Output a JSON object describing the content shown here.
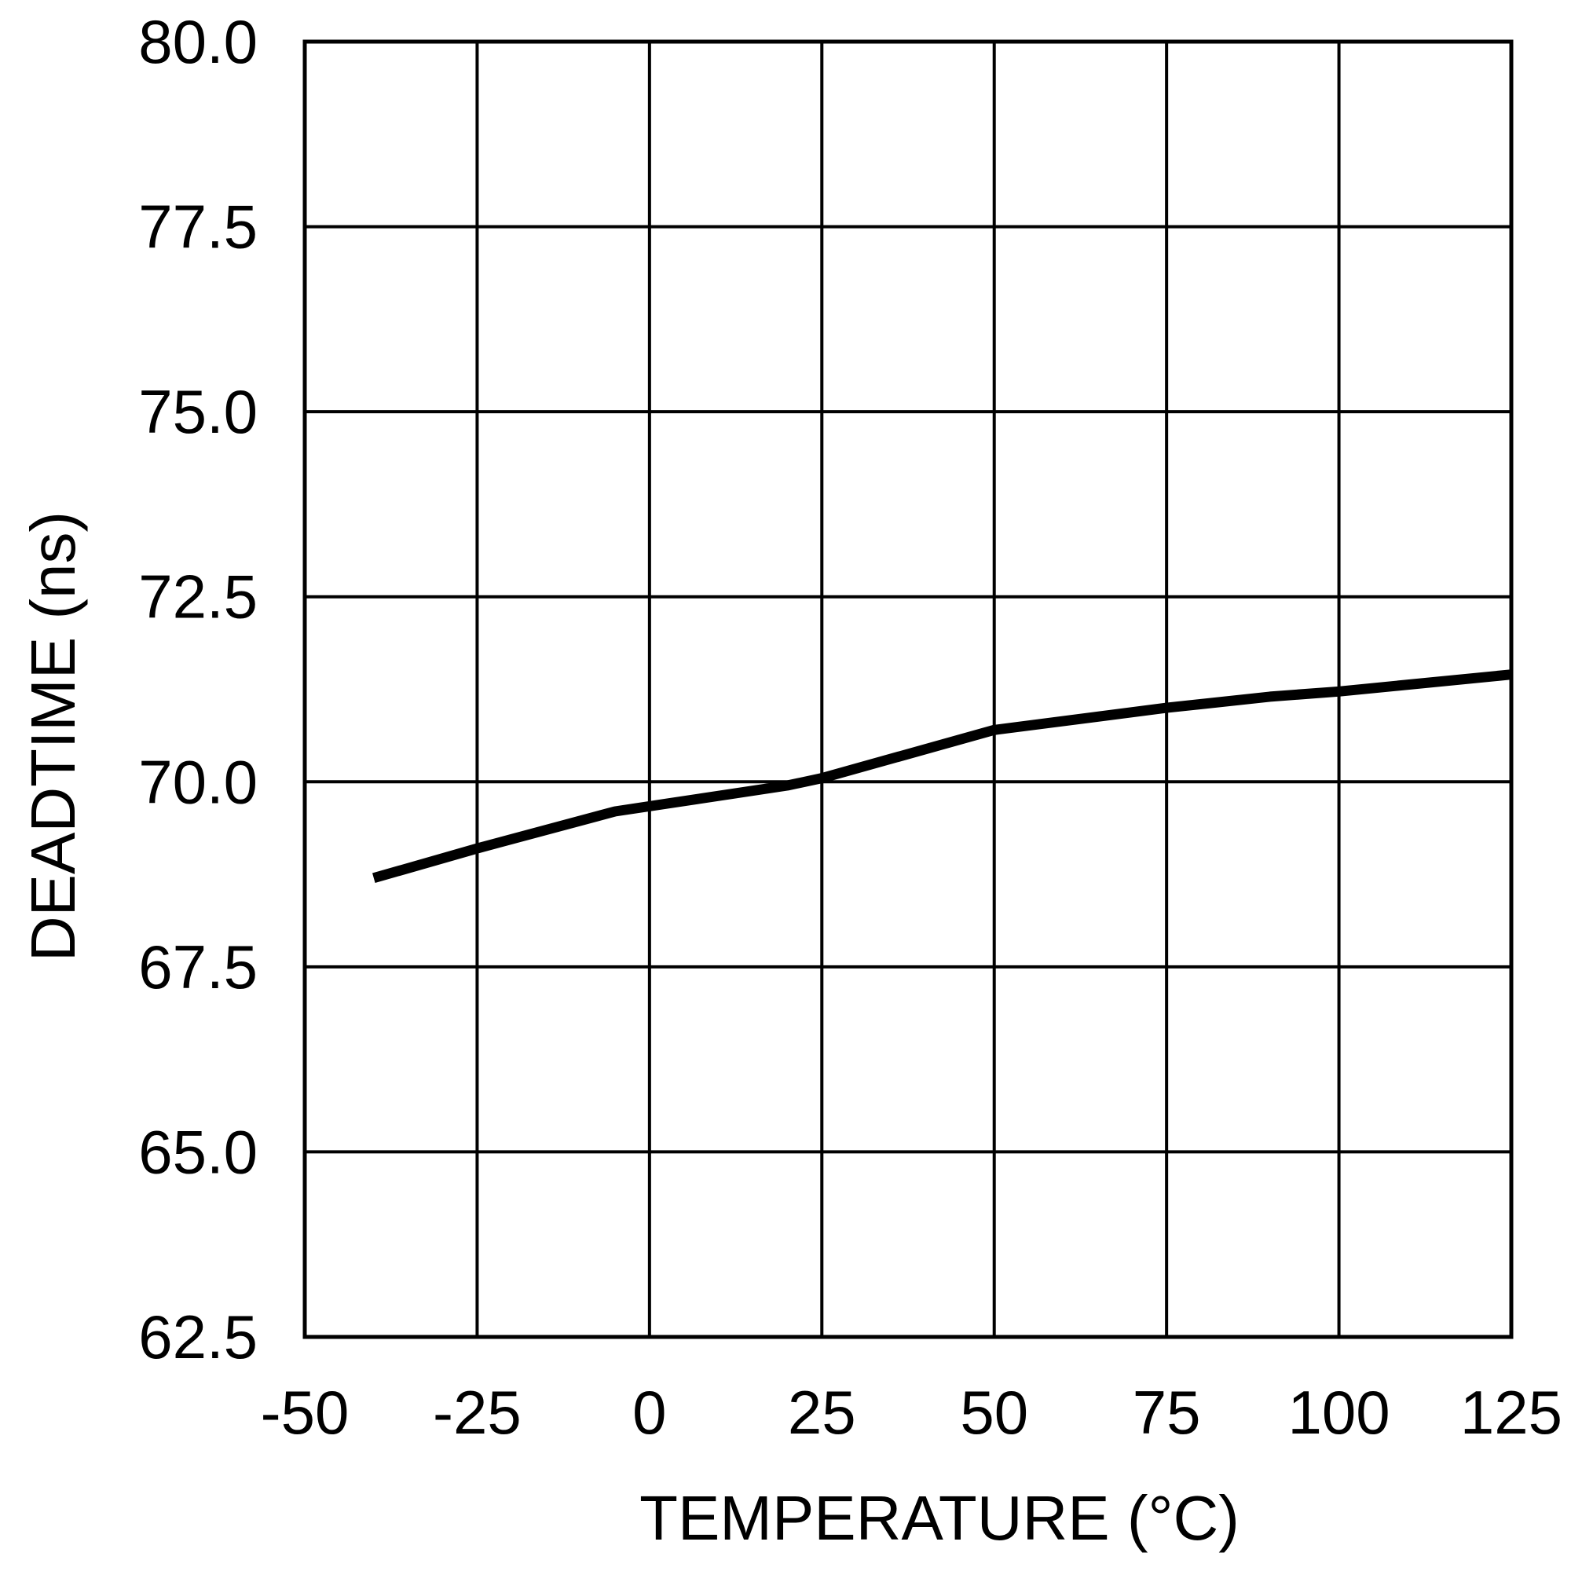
{
  "chart_data": {
    "type": "line",
    "title": "",
    "xlabel": "TEMPERATURE (°C)",
    "ylabel": "DEADTIME (ns)",
    "xlim": [
      -50,
      125
    ],
    "ylim": [
      62.5,
      80.0
    ],
    "x_ticks": [
      "-50",
      "-25",
      "0",
      "25",
      "50",
      "75",
      "100",
      "125"
    ],
    "y_ticks": [
      "62.5",
      "65.0",
      "67.5",
      "70.0",
      "72.5",
      "75.0",
      "77.5",
      "80.0"
    ],
    "grid": true,
    "legend": "none",
    "series": [
      {
        "x": [
          -40,
          -25,
          -5,
          20,
          25,
          50,
          75,
          90,
          100,
          125
        ],
        "y": [
          68.7,
          69.1,
          69.6,
          69.95,
          70.05,
          70.7,
          71.0,
          71.15,
          71.22,
          71.45
        ],
        "color": "#000000"
      }
    ]
  }
}
